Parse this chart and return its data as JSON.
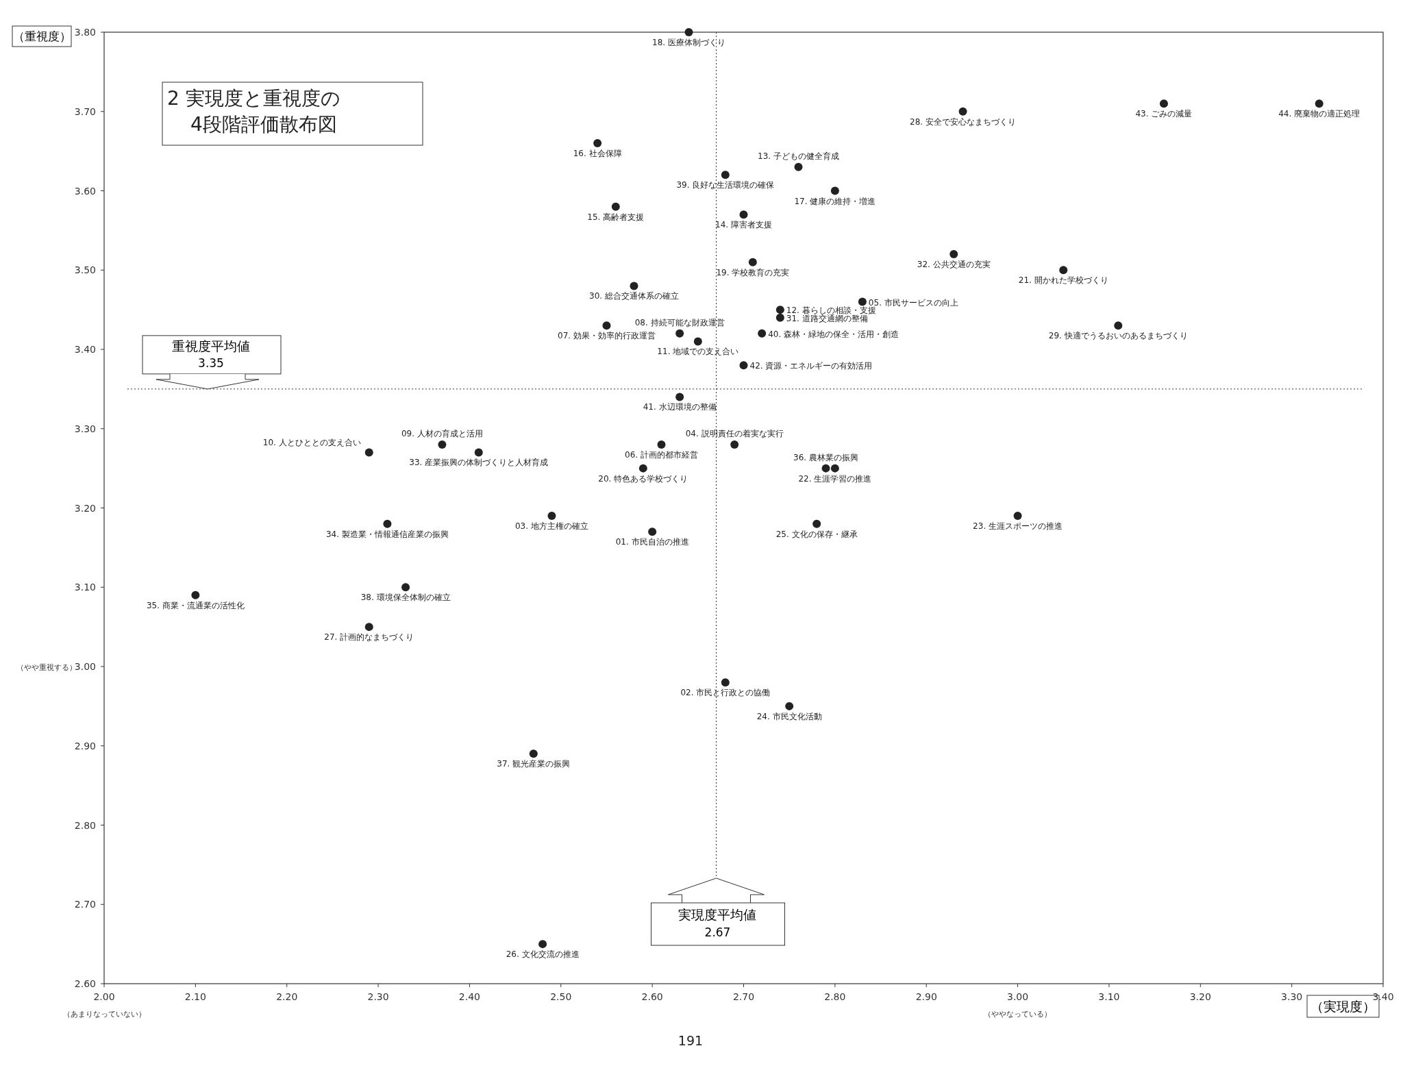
{
  "chart_data": {
    "type": "scatter",
    "title": "2 実現度と重視度の\n4段階評価散布図",
    "xlabel": "（実現度）",
    "ylabel": "（重視度）",
    "xlim": [
      2,
      3.4
    ],
    "ylim": [
      2.6,
      3.8
    ],
    "xticks": [
      {
        "value": 2,
        "label": "2.00"
      },
      {
        "value": 2.1,
        "label": "2.10"
      },
      {
        "value": 2.2,
        "label": "2.20"
      },
      {
        "value": 2.3,
        "label": "2.30"
      },
      {
        "value": 2.4,
        "label": "2.40"
      },
      {
        "value": 2.5,
        "label": "2.50"
      },
      {
        "value": 2.6,
        "label": "2.60"
      },
      {
        "value": 2.7,
        "label": "2.70"
      },
      {
        "value": 2.8,
        "label": "2.80"
      },
      {
        "value": 2.9,
        "label": "2.90"
      },
      {
        "value": 3,
        "label": "3.00"
      },
      {
        "value": 3.1,
        "label": "3.10"
      },
      {
        "value": 3.2,
        "label": "3.20"
      },
      {
        "value": 3.3,
        "label": "3.30"
      },
      {
        "value": 3.4,
        "label": "3.40"
      }
    ],
    "yticks": [
      {
        "value": 2.6,
        "label": "2.60"
      },
      {
        "value": 2.7,
        "label": "2.70"
      },
      {
        "value": 2.8,
        "label": "2.80"
      },
      {
        "value": 2.9,
        "label": "2.90"
      },
      {
        "value": 3,
        "label": "3.00"
      },
      {
        "value": 3.1,
        "label": "3.10"
      },
      {
        "value": 3.2,
        "label": "3.20"
      },
      {
        "value": 3.3,
        "label": "3.30"
      },
      {
        "value": 3.4,
        "label": "3.40"
      },
      {
        "value": 3.5,
        "label": "3.50"
      },
      {
        "value": 3.6,
        "label": "3.60"
      },
      {
        "value": 3.7,
        "label": "3.70"
      },
      {
        "value": 3.8,
        "label": "3.80"
      }
    ],
    "grid": false,
    "legend": false,
    "marker": "circle",
    "ref_lines": [
      {
        "axis": "x",
        "value": 2.67,
        "label": "実現度平均値\n2.67",
        "line_style": "dotted",
        "color": "#333333"
      },
      {
        "axis": "y",
        "value": 3.35,
        "label": "重視度平均値\n3.35",
        "line_style": "dotted",
        "color": "#333333"
      }
    ],
    "annotations": [
      "（やや重視する）",
      "（あまりなっていない）",
      "（ややなっている）",
      "191"
    ],
    "series": [
      {
        "name": "01. 市民自治の推進",
        "color": "#222222",
        "x": [
          2.6
        ],
        "values": [
          3.17
        ]
      },
      {
        "name": "02. 市民と行政との協働",
        "color": "#222222",
        "x": [
          2.68
        ],
        "values": [
          2.98
        ]
      },
      {
        "name": "03. 地方主権の確立",
        "color": "#222222",
        "x": [
          2.49
        ],
        "values": [
          3.19
        ]
      },
      {
        "name": "04. 説明責任の着実な実行",
        "color": "#222222",
        "x": [
          2.69
        ],
        "values": [
          3.28
        ]
      },
      {
        "name": "05. 市民サービスの向上",
        "color": "#222222",
        "x": [
          2.83
        ],
        "values": [
          3.46
        ]
      },
      {
        "name": "06. 計画的都市経営",
        "color": "#222222",
        "x": [
          2.61
        ],
        "values": [
          3.28
        ]
      },
      {
        "name": "07. 効果・効率的行政運営",
        "color": "#222222",
        "x": [
          2.55
        ],
        "values": [
          3.43
        ]
      },
      {
        "name": "08. 持続可能な財政運営",
        "color": "#222222",
        "x": [
          2.63
        ],
        "values": [
          3.42
        ]
      },
      {
        "name": "09. 人材の育成と活用",
        "color": "#222222",
        "x": [
          2.37
        ],
        "values": [
          3.28
        ]
      },
      {
        "name": "10. 人とひととの支え合い",
        "color": "#222222",
        "x": [
          2.29
        ],
        "values": [
          3.27
        ]
      },
      {
        "name": "11. 地域での支え合い",
        "color": "#222222",
        "x": [
          2.65
        ],
        "values": [
          3.41
        ]
      },
      {
        "name": "12. 暮らしの相談・支援",
        "color": "#222222",
        "x": [
          2.74
        ],
        "values": [
          3.45
        ]
      },
      {
        "name": "13. 子どもの健全育成",
        "color": "#222222",
        "x": [
          2.76
        ],
        "values": [
          3.63
        ]
      },
      {
        "name": "14. 障害者支援",
        "color": "#222222",
        "x": [
          2.7
        ],
        "values": [
          3.57
        ]
      },
      {
        "name": "15. 高齢者支援",
        "color": "#222222",
        "x": [
          2.56
        ],
        "values": [
          3.58
        ]
      },
      {
        "name": "16. 社会保障",
        "color": "#222222",
        "x": [
          2.54
        ],
        "values": [
          3.66
        ]
      },
      {
        "name": "17. 健康の維持・増進",
        "color": "#222222",
        "x": [
          2.8
        ],
        "values": [
          3.6
        ]
      },
      {
        "name": "18. 医療体制づくり",
        "color": "#222222",
        "x": [
          2.64
        ],
        "values": [
          3.8
        ]
      },
      {
        "name": "19. 学校教育の充実",
        "color": "#222222",
        "x": [
          2.71
        ],
        "values": [
          3.51
        ]
      },
      {
        "name": "20. 特色ある学校づくり",
        "color": "#222222",
        "x": [
          2.59
        ],
        "values": [
          3.25
        ]
      },
      {
        "name": "21. 開かれた学校づくり",
        "color": "#222222",
        "x": [
          3.05
        ],
        "values": [
          3.5
        ]
      },
      {
        "name": "22. 生涯学習の推進",
        "color": "#222222",
        "x": [
          2.8
        ],
        "values": [
          3.25
        ]
      },
      {
        "name": "23. 生涯スポーツの推進",
        "color": "#222222",
        "x": [
          3
        ],
        "values": [
          3.19
        ]
      },
      {
        "name": "24. 市民文化活動",
        "color": "#222222",
        "x": [
          2.75
        ],
        "values": [
          2.95
        ]
      },
      {
        "name": "25. 文化の保存・継承",
        "color": "#222222",
        "x": [
          2.78
        ],
        "values": [
          3.18
        ]
      },
      {
        "name": "26. 文化交流の推進",
        "color": "#222222",
        "x": [
          2.48
        ],
        "values": [
          2.65
        ]
      },
      {
        "name": "27. 計画的なまちづくり",
        "color": "#222222",
        "x": [
          2.29
        ],
        "values": [
          3.05
        ]
      },
      {
        "name": "28. 安全で安心なまちづくり",
        "color": "#222222",
        "x": [
          2.94
        ],
        "values": [
          3.7
        ]
      },
      {
        "name": "29. 快適でうるおいのあるまちづくり",
        "color": "#222222",
        "x": [
          3.11
        ],
        "values": [
          3.43
        ]
      },
      {
        "name": "30. 総合交通体系の確立",
        "color": "#222222",
        "x": [
          2.58
        ],
        "values": [
          3.48
        ]
      },
      {
        "name": "31. 道路交通網の整備",
        "color": "#222222",
        "x": [
          2.74
        ],
        "values": [
          3.44
        ]
      },
      {
        "name": "32. 公共交通の充実",
        "color": "#222222",
        "x": [
          2.93
        ],
        "values": [
          3.52
        ]
      },
      {
        "name": "33. 産業振興の体制づくりと人材育成",
        "color": "#222222",
        "x": [
          2.41
        ],
        "values": [
          3.27
        ]
      },
      {
        "name": "34. 製造業・情報通信産業の振興",
        "color": "#222222",
        "x": [
          2.31
        ],
        "values": [
          3.18
        ]
      },
      {
        "name": "35. 商業・流通業の活性化",
        "color": "#222222",
        "x": [
          2.1
        ],
        "values": [
          3.09
        ]
      },
      {
        "name": "36. 農林業の振興",
        "color": "#222222",
        "x": [
          2.79
        ],
        "values": [
          3.25
        ]
      },
      {
        "name": "37. 観光産業の振興",
        "color": "#222222",
        "x": [
          2.47
        ],
        "values": [
          2.89
        ]
      },
      {
        "name": "38. 環境保全体制の確立",
        "color": "#222222",
        "x": [
          2.33
        ],
        "values": [
          3.1
        ]
      },
      {
        "name": "39. 良好な生活環境の確保",
        "color": "#222222",
        "x": [
          2.68
        ],
        "values": [
          3.62
        ]
      },
      {
        "name": "40. 森林・緑地の保全・活用・創造",
        "color": "#222222",
        "x": [
          2.72
        ],
        "values": [
          3.42
        ]
      },
      {
        "name": "41. 水辺環境の整備",
        "color": "#222222",
        "x": [
          2.63
        ],
        "values": [
          3.34
        ]
      },
      {
        "name": "42. 資源・エネルギーの有効活用",
        "color": "#222222",
        "x": [
          2.7
        ],
        "values": [
          3.38
        ]
      },
      {
        "name": "43. ごみの減量",
        "color": "#222222",
        "x": [
          3.16
        ],
        "values": [
          3.71
        ]
      },
      {
        "name": "44. 廃棄物の適正処理",
        "color": "#222222",
        "x": [
          3.33
        ],
        "values": [
          3.71
        ]
      }
    ]
  }
}
